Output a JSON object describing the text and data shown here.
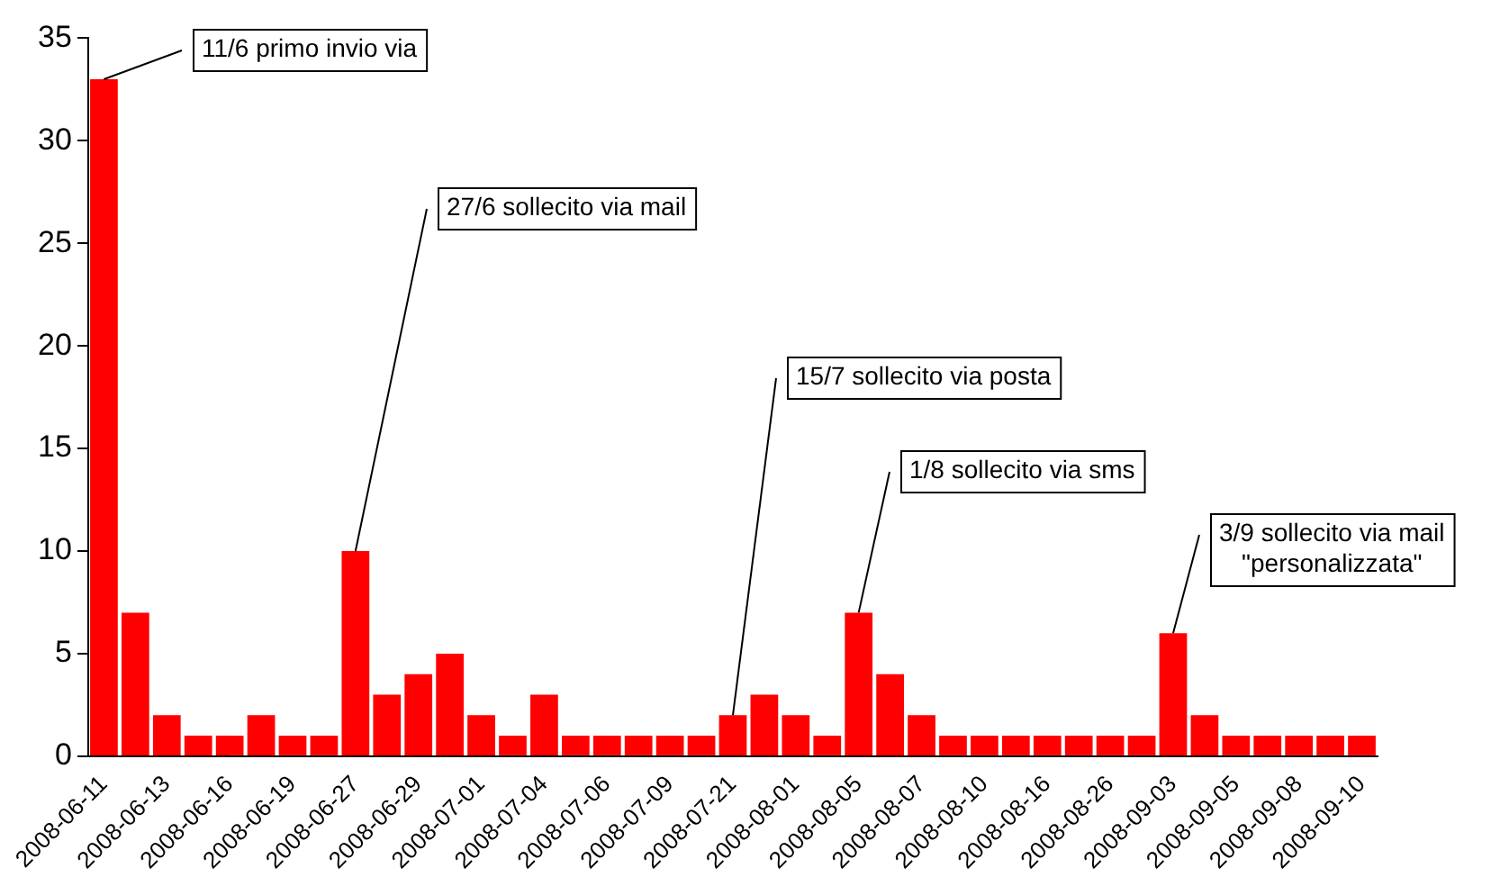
{
  "chart_data": {
    "type": "bar",
    "color": "#ff0000",
    "categories": [
      "2008-06-11",
      null,
      "2008-06-13",
      null,
      "2008-06-16",
      null,
      "2008-06-19",
      null,
      "2008-06-27",
      null,
      "2008-06-29",
      null,
      "2008-07-01",
      null,
      "2008-07-04",
      null,
      "2008-07-06",
      null,
      "2008-07-09",
      null,
      "2008-07-21",
      null,
      "2008-08-01",
      null,
      "2008-08-05",
      null,
      "2008-08-07",
      null,
      "2008-08-10",
      null,
      "2008-08-16",
      null,
      "2008-08-26",
      null,
      "2008-09-03",
      null,
      "2008-09-05",
      null,
      "2008-09-08",
      null,
      "2008-09-10"
    ],
    "values": [
      33,
      7,
      2,
      1,
      1,
      2,
      1,
      1,
      10,
      3,
      4,
      5,
      2,
      1,
      3,
      1,
      1,
      1,
      1,
      1,
      2,
      3,
      2,
      1,
      7,
      4,
      2,
      1,
      1,
      1,
      1,
      1,
      1,
      1,
      6,
      2,
      1,
      1,
      1,
      1,
      1
    ],
    "ylim": [
      0,
      35
    ],
    "yticks": [
      0,
      5,
      10,
      15,
      20,
      25,
      30,
      35
    ],
    "grid": false,
    "legend": false,
    "annotations": [
      {
        "text": "11/6 primo invio via",
        "x": "2008-06-11",
        "y": 33
      },
      {
        "text": "27/6 sollecito via mail",
        "x": "2008-06-27",
        "y": 10
      },
      {
        "text": "15/7 sollecito via posta",
        "x": "2008-07-21",
        "y": 2
      },
      {
        "text": "1/8 sollecito via sms",
        "x": "2008-08-05",
        "y": 7
      },
      {
        "text": "3/9 sollecito via mail\n\"personalizzata\"",
        "x": "2008-09-03",
        "y": 6
      }
    ]
  }
}
